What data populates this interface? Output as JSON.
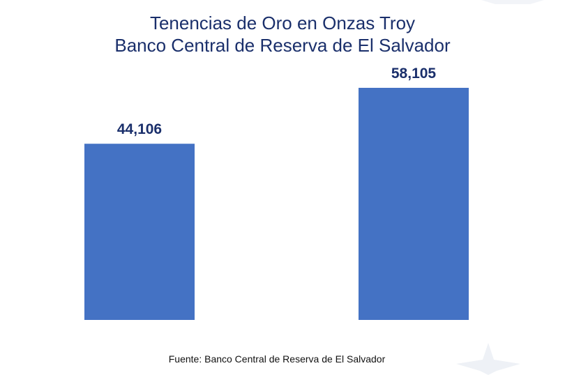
{
  "chart_data": {
    "type": "bar",
    "title_line1": "Tenencias de Oro en Onzas Troy",
    "title_line2": "Banco Central de Reserva de El Salvador",
    "categories": [
      "",
      ""
    ],
    "values": [
      44106,
      58105
    ],
    "value_labels": [
      "44,106",
      "58,105"
    ],
    "xlabel": "",
    "ylabel": "",
    "ylim": [
      0,
      58105
    ],
    "grid": false,
    "legend": "none",
    "bar_color": "#4472c4",
    "label_color": "#1a2f6b"
  },
  "source": "Fuente: Banco Central de Reserva de El Salvador"
}
